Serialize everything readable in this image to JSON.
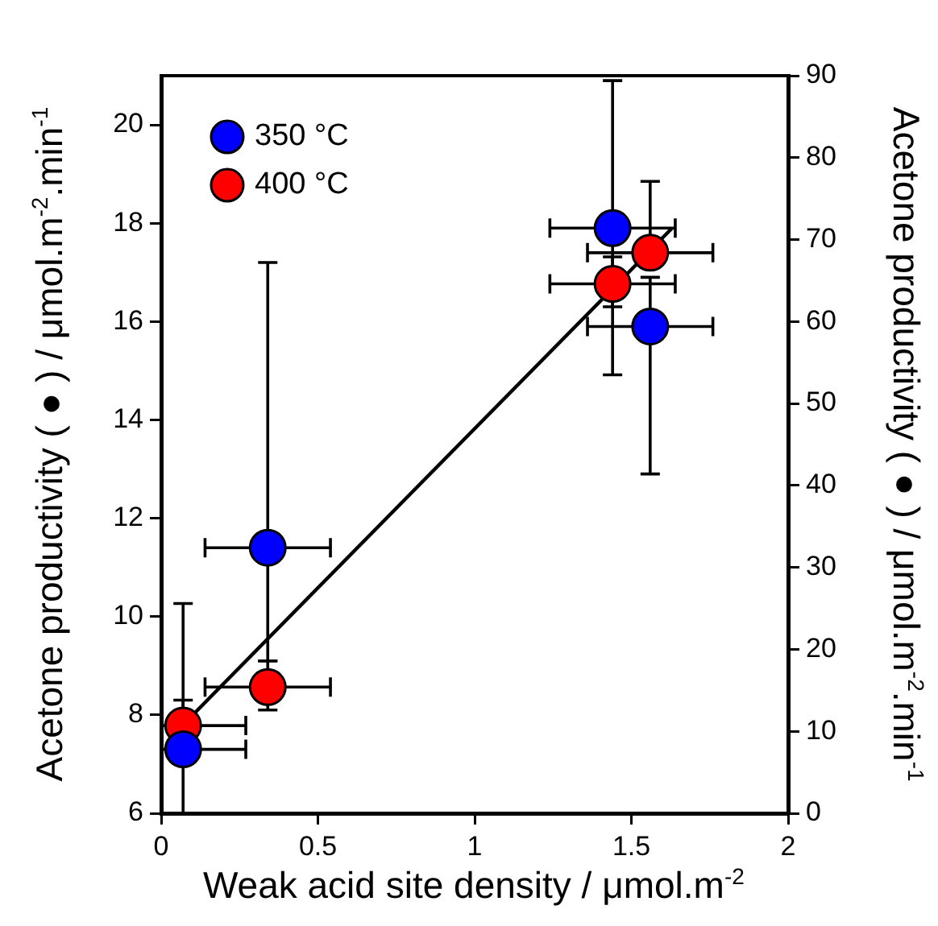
{
  "chart_data": {
    "type": "scatter",
    "xlabel": "Weak acid site density / μmol.m$^{-2}$",
    "ylabel": "Acetone productivity ( ● ) / μmol.m$^{-2}$.min$^{-1}$",
    "y2label": "Acetone productivity ( ● ) / μmol.m$^{-2}$.min$^{-1}$",
    "xlim": [
      0,
      2
    ],
    "xticks": [
      0,
      0.5,
      1,
      1.5,
      2
    ],
    "ylim": [
      6,
      21
    ],
    "yticks": [
      6,
      8,
      10,
      12,
      14,
      16,
      18,
      20
    ],
    "y2lim": [
      0,
      90
    ],
    "y2ticks": [
      0,
      10,
      20,
      30,
      40,
      50,
      60,
      70,
      80,
      90
    ],
    "grid": false,
    "legend": "top left",
    "marker": "circle",
    "series": [
      {
        "name": "350 °C",
        "color": "#0000ff",
        "x": [
          0.07,
          0.34,
          1.44,
          1.56
        ],
        "values": [
          7.3,
          11.4,
          17.9,
          15.9
        ],
        "errors": [
          [
            6,
            8.3
          ],
          [
            9.1,
            17.2
          ],
          [
            16.3,
            20.9
          ],
          [
            12.9,
            16.9
          ]
        ],
        "xerrors": [
          [
            0,
            0.27
          ],
          [
            0.14,
            0.54
          ],
          [
            1.24,
            1.64
          ],
          [
            1.36,
            1.76
          ]
        ]
      },
      {
        "name": "400 °C",
        "color": "#ff0000",
        "axis": "y2",
        "x": [
          0.07,
          0.34,
          1.44,
          1.56
        ],
        "values": [
          10.7,
          15.4,
          64.6,
          68.4
        ],
        "errors": [
          [
            10.7,
            25.6
          ],
          [
            12.6,
            18.6
          ],
          [
            53.5,
            67.9
          ],
          [
            68.4,
            77.1
          ]
        ],
        "xerrors": [
          [
            0,
            0.27
          ],
          [
            0.14,
            0.54
          ],
          [
            1.24,
            1.64
          ],
          [
            1.36,
            1.76
          ]
        ]
      },
      {
        "type": "line",
        "color": "#000000",
        "x": [
          0.07,
          1.63
        ],
        "values": [
          7.8,
          17.9
        ],
        "marker": "none",
        "line_style": "solid"
      }
    ]
  }
}
